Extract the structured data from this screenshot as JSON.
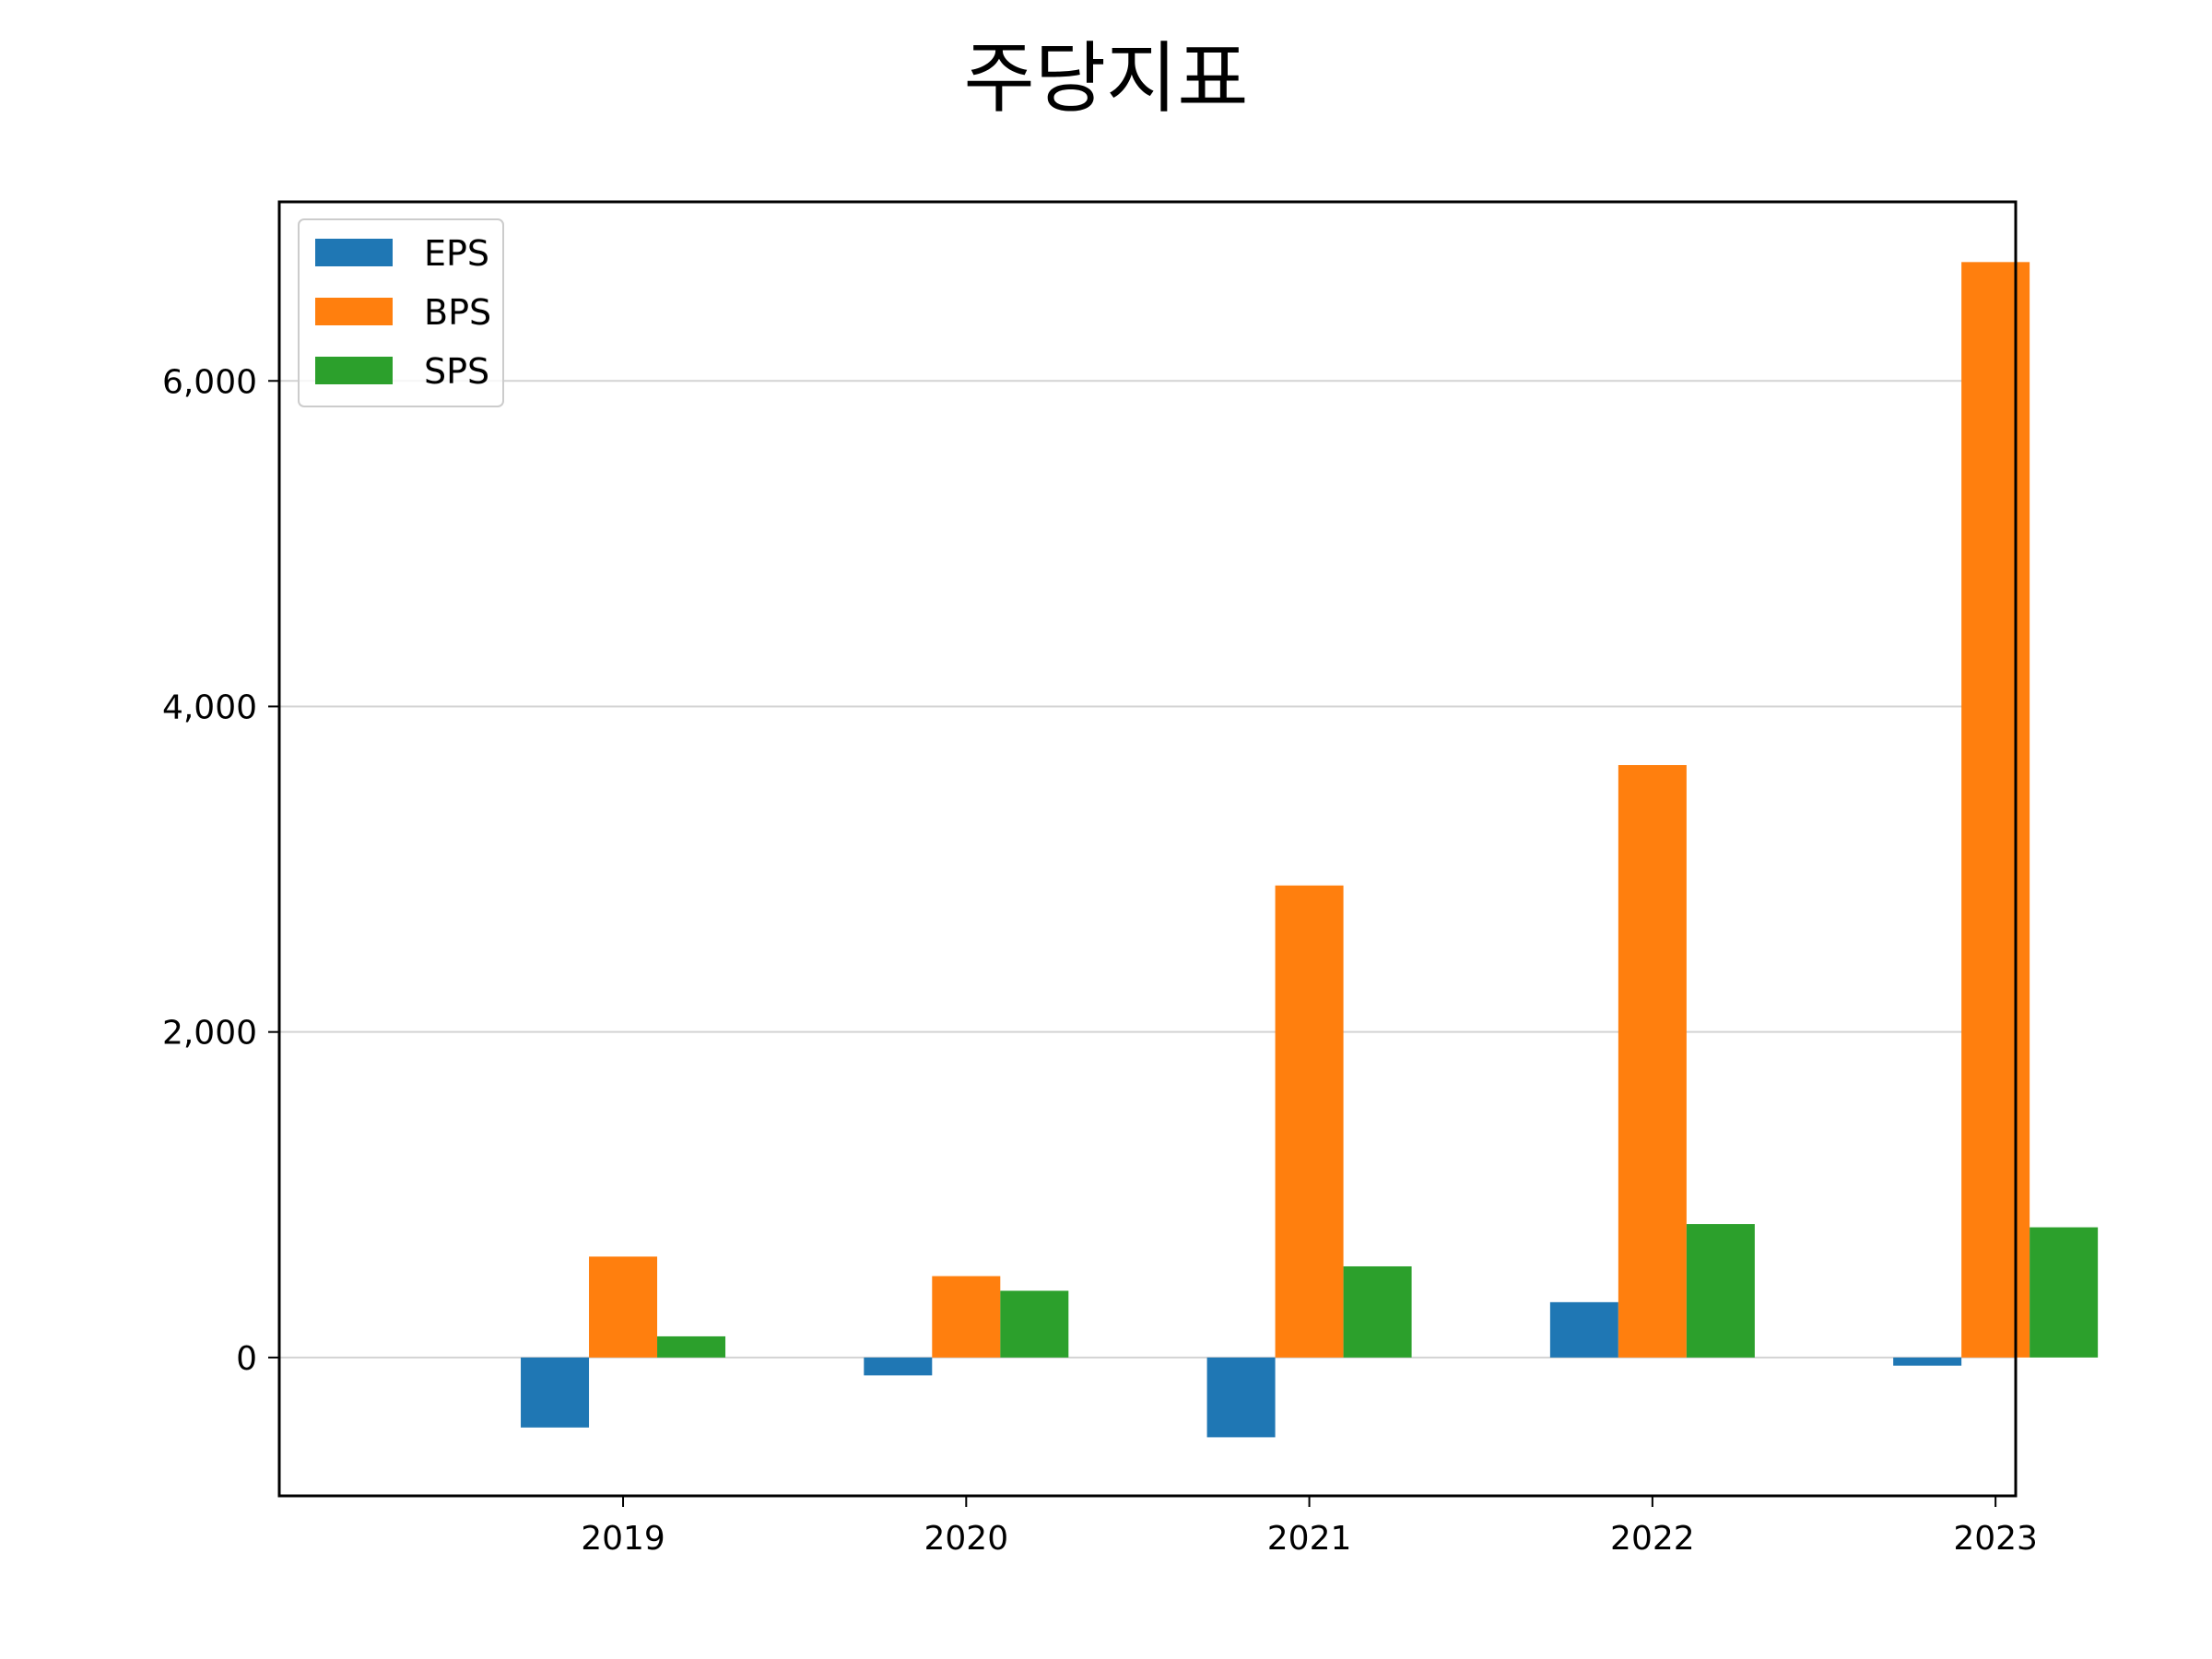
{
  "chart_data": {
    "type": "bar",
    "title": "주당지표",
    "xlabel": "",
    "ylabel": "",
    "categories": [
      "2019",
      "2020",
      "2021",
      "2022",
      "2023"
    ],
    "series": [
      {
        "name": "EPS",
        "color": "#1f77b4",
        "values": [
          -430,
          -110,
          -490,
          340,
          -50
        ]
      },
      {
        "name": "BPS",
        "color": "#ff7f0e",
        "values": [
          620,
          500,
          2900,
          3640,
          6730
        ]
      },
      {
        "name": "SPS",
        "color": "#2ca02c",
        "values": [
          130,
          410,
          560,
          820,
          800
        ]
      }
    ],
    "ylim": [
      -850,
      7100
    ],
    "yticks": [
      0,
      2000,
      4000,
      6000
    ],
    "ytick_labels": [
      "0",
      "2,000",
      "4,000",
      "6,000"
    ],
    "grid": "y",
    "legend_position": "upper-left"
  }
}
